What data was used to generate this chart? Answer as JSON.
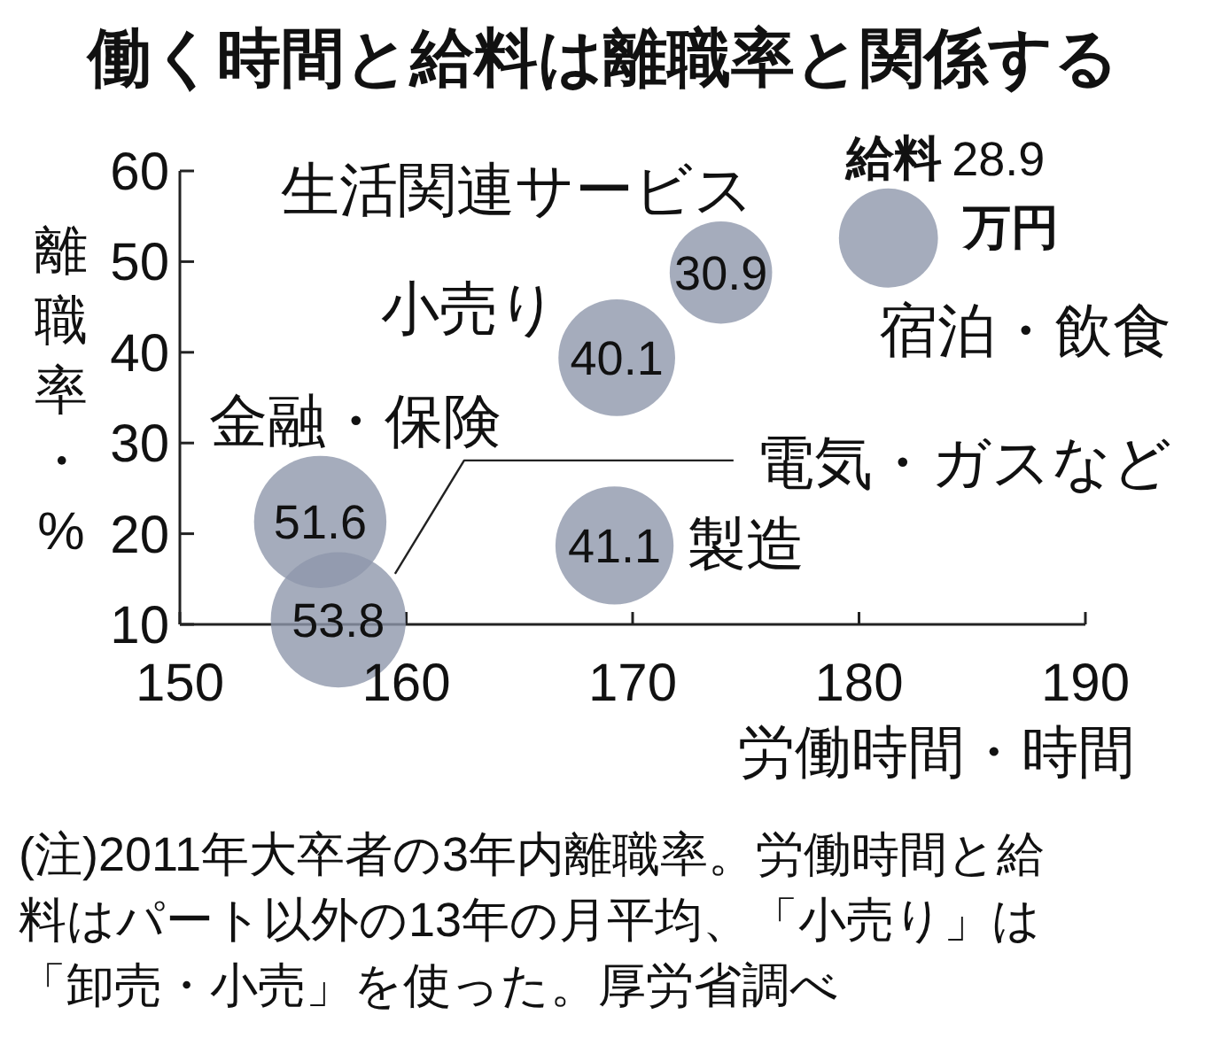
{
  "chart_data": {
    "type": "bubble",
    "title": "働く時間と給料は離職率と関係する",
    "xlabel": "労働時間・時間",
    "ylabel": "離職率・%",
    "xlim": [
      150,
      190
    ],
    "ylim": [
      10,
      60
    ],
    "xticks": [
      150,
      160,
      170,
      180,
      190
    ],
    "yticks": [
      10,
      20,
      30,
      40,
      50,
      60
    ],
    "marker": "circle",
    "series": [
      {
        "name": "宿泊・飲食",
        "color": "#8e97ab",
        "x": [
          181.3
        ],
        "values": [
          52.6
        ],
        "sizes": [
          28.9
        ],
        "value_labels": [
          "28.9"
        ]
      },
      {
        "name": "生活関連サービス",
        "color": "#8e97ab",
        "x": [
          173.9
        ],
        "values": [
          48.8
        ],
        "sizes": [
          30.9
        ],
        "value_labels": [
          "30.9"
        ]
      },
      {
        "name": "小売り",
        "color": "#8e97ab",
        "x": [
          169.3
        ],
        "values": [
          39.4
        ],
        "sizes": [
          40.1
        ],
        "value_labels": [
          "40.1"
        ]
      },
      {
        "name": "金融・保険",
        "color": "#8e97ab",
        "x": [
          156.2
        ],
        "values": [
          21.3
        ],
        "sizes": [
          51.6
        ],
        "value_labels": [
          "51.6"
        ]
      },
      {
        "name": "電気・ガスなど",
        "color": "#8e97ab",
        "x": [
          157.0
        ],
        "values": [
          10.5
        ],
        "sizes": [
          53.8
        ],
        "value_labels": [
          "53.8"
        ]
      },
      {
        "name": "製造",
        "color": "#8e97ab",
        "x": [
          169.2
        ],
        "values": [
          18.7
        ],
        "sizes": [
          41.1
        ],
        "value_labels": [
          "41.1"
        ]
      }
    ],
    "annotations": [
      {
        "text": "給料",
        "x": 181.3,
        "y": 52.6
      },
      {
        "text": "万円",
        "x": 181.3,
        "y": 52.6
      },
      "(注)2011年大卒者の3年内離職率。労働時間と給料はパート以外の13年の月平均、「小売り」は「卸売・小売」を使った。厚労省調べ"
    ]
  }
}
